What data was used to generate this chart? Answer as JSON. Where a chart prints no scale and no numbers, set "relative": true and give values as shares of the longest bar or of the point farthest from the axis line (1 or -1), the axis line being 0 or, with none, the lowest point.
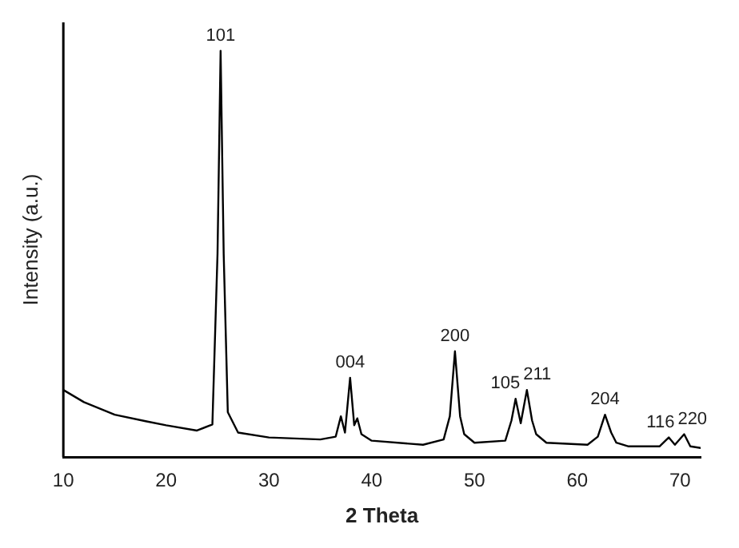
{
  "chart_data": {
    "type": "line",
    "relative": true,
    "xlabel": "2 Theta",
    "ylabel": "Intensity (a.u.)",
    "xlim": [
      10,
      72
    ],
    "xticks": [
      10,
      20,
      30,
      40,
      50,
      60,
      70
    ],
    "grid": false,
    "legend": false,
    "marker": "none",
    "line_style": "solid",
    "series": [
      {
        "color": "#000000",
        "x": [
          10,
          12,
          15,
          18,
          20,
          23,
          24.5,
          25,
          25.3,
          25.6,
          26,
          27,
          30,
          35,
          36.5,
          37,
          37.4,
          37.9,
          38.3,
          38.6,
          39,
          40,
          45,
          47,
          47.6,
          48.1,
          48.6,
          49,
          50,
          53,
          53.6,
          54,
          54.5,
          55.1,
          55.6,
          56,
          57,
          61,
          62,
          62.7,
          63.3,
          63.8,
          65,
          68,
          68.9,
          69.5,
          70.4,
          71,
          72
        ],
        "values": [
          0.165,
          0.135,
          0.104,
          0.088,
          0.078,
          0.065,
          0.08,
          0.5,
          1,
          0.5,
          0.11,
          0.06,
          0.048,
          0.043,
          0.05,
          0.1,
          0.06,
          0.195,
          0.078,
          0.095,
          0.056,
          0.04,
          0.03,
          0.043,
          0.1,
          0.26,
          0.1,
          0.056,
          0.035,
          0.04,
          0.09,
          0.143,
          0.083,
          0.165,
          0.09,
          0.056,
          0.035,
          0.03,
          0.05,
          0.104,
          0.06,
          0.035,
          0.026,
          0.026,
          0.048,
          0.03,
          0.056,
          0.026,
          0.022
        ]
      }
    ],
    "annotations": [
      {
        "text": "101",
        "x": 25.3,
        "y": 1
      },
      {
        "text": "004",
        "x": 37.9,
        "y": 0.195
      },
      {
        "text": "200",
        "x": 48.1,
        "y": 0.26
      },
      {
        "text": "105",
        "x": 54,
        "y": 0.143
      },
      {
        "text": "211",
        "x": 55.1,
        "y": 0.165
      },
      {
        "text": "204",
        "x": 62.7,
        "y": 0.104
      },
      {
        "text": "116",
        "x": 68.9,
        "y": 0.048
      },
      {
        "text": "220",
        "x": 70.4,
        "y": 0.056
      }
    ]
  }
}
